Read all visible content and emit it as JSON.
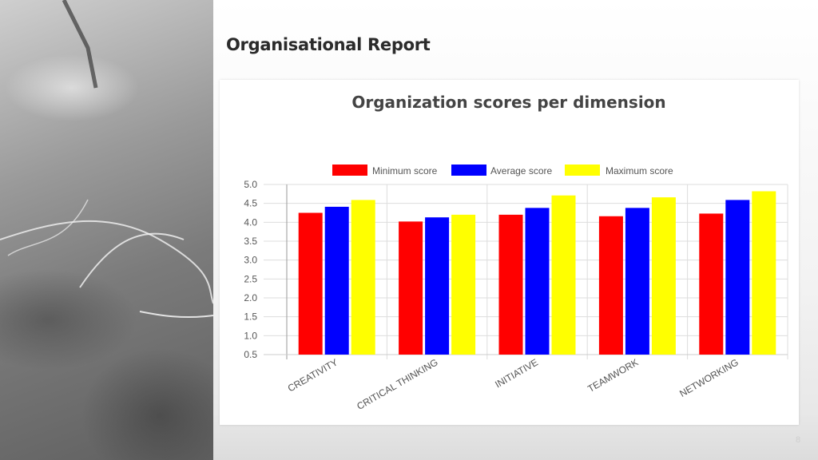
{
  "slide": {
    "title": "Organisational Report",
    "page_number": "8"
  },
  "chart_data": {
    "type": "bar",
    "title": "Organization scores per dimension",
    "xlabel": "",
    "ylabel": "",
    "ylim": [
      0.5,
      5.0
    ],
    "yticks": [
      "5.0",
      "4.5",
      "4.0",
      "3.5",
      "3.0",
      "2.5",
      "2.0",
      "1.5",
      "1.0",
      "0.5"
    ],
    "grid": true,
    "legend_position": "top",
    "categories": [
      "CREATIVITY",
      "CRITICAL THINKING",
      "INITIATIVE",
      "TEAMWORK",
      "NETWORKING"
    ],
    "series": [
      {
        "name": "Minimum score",
        "color": "#ff0000",
        "values": [
          4.25,
          4.02,
          4.2,
          4.16,
          4.23
        ]
      },
      {
        "name": "Average score",
        "color": "#0000ff",
        "values": [
          4.41,
          4.13,
          4.38,
          4.38,
          4.59
        ]
      },
      {
        "name": "Maximum score",
        "color": "#ffff00",
        "values": [
          4.59,
          4.2,
          4.71,
          4.66,
          4.82
        ]
      }
    ]
  }
}
